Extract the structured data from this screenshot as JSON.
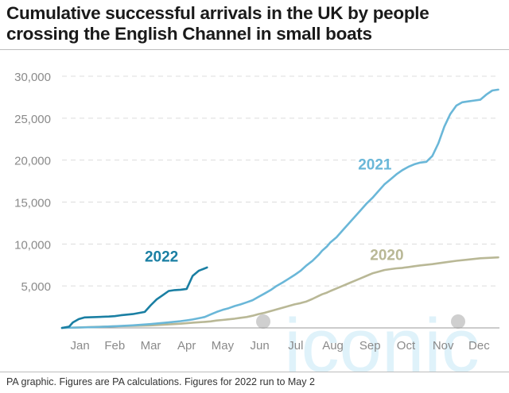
{
  "footer": "PA graphic. Figures are PA calculations. Figures for 2022 run to May 2",
  "watermark": {
    "text": "iconic",
    "color": "#6ec3ea"
  },
  "chart_data": {
    "type": "line",
    "title": "Cumulative successful arrivals in the UK by people crossing the English Channel in small boats",
    "xlabel": "",
    "ylabel": "",
    "x_unit": "day of year",
    "xlim": [
      1,
      366
    ],
    "ylim": [
      0,
      30000
    ],
    "yticks": [
      {
        "value": 0,
        "label": ""
      },
      {
        "value": 5000,
        "label": "5,000"
      },
      {
        "value": 10000,
        "label": "10,000"
      },
      {
        "value": 15000,
        "label": "15,000"
      },
      {
        "value": 20000,
        "label": "20,000"
      },
      {
        "value": 25000,
        "label": "25,000"
      },
      {
        "value": 30000,
        "label": "30,000"
      }
    ],
    "xticks": [
      {
        "value": 16,
        "label": "Jan"
      },
      {
        "value": 45,
        "label": "Feb"
      },
      {
        "value": 75,
        "label": "Mar"
      },
      {
        "value": 105,
        "label": "Apr"
      },
      {
        "value": 135,
        "label": "May"
      },
      {
        "value": 166,
        "label": "Jun"
      },
      {
        "value": 196,
        "label": "Jul"
      },
      {
        "value": 227,
        "label": "Aug"
      },
      {
        "value": 258,
        "label": "Sep"
      },
      {
        "value": 288,
        "label": "Oct"
      },
      {
        "value": 319,
        "label": "Nov"
      },
      {
        "value": 349,
        "label": "Dec"
      }
    ],
    "grid": {
      "horizontal": true,
      "style": "dashed",
      "color": "#dcdcdc"
    },
    "series": [
      {
        "name": "2020",
        "color": "#b9b896",
        "label_pos": [
          258,
          8100
        ],
        "x": [
          1,
          15,
          30,
          45,
          60,
          75,
          90,
          100,
          105,
          110,
          120,
          125,
          130,
          135,
          140,
          145,
          150,
          155,
          160,
          165,
          170,
          175,
          180,
          185,
          190,
          195,
          200,
          205,
          210,
          215,
          218,
          222,
          225,
          230,
          235,
          240,
          245,
          250,
          255,
          260,
          265,
          270,
          275,
          280,
          285,
          290,
          295,
          300,
          310,
          320,
          330,
          340,
          350,
          365
        ],
        "y": [
          0,
          60,
          120,
          190,
          250,
          300,
          420,
          500,
          560,
          620,
          720,
          780,
          880,
          950,
          1020,
          1100,
          1200,
          1300,
          1450,
          1650,
          1800,
          2000,
          2200,
          2400,
          2600,
          2800,
          2950,
          3150,
          3450,
          3800,
          4000,
          4200,
          4400,
          4700,
          5000,
          5300,
          5600,
          5900,
          6200,
          6500,
          6700,
          6900,
          7000,
          7100,
          7150,
          7250,
          7350,
          7450,
          7600,
          7800,
          8000,
          8150,
          8300,
          8400
        ]
      },
      {
        "name": "2021",
        "color": "#6ab7d8",
        "label_pos": [
          248,
          18900
        ],
        "x": [
          1,
          15,
          30,
          45,
          60,
          75,
          90,
          100,
          105,
          110,
          120,
          125,
          130,
          135,
          140,
          145,
          150,
          155,
          160,
          165,
          170,
          175,
          180,
          185,
          190,
          195,
          200,
          205,
          210,
          215,
          218,
          222,
          225,
          230,
          235,
          240,
          245,
          250,
          255,
          260,
          265,
          270,
          275,
          280,
          285,
          290,
          295,
          300,
          305,
          310,
          315,
          320,
          325,
          330,
          335,
          340,
          345,
          350,
          355,
          360,
          365
        ],
        "y": [
          0,
          50,
          100,
          200,
          300,
          450,
          650,
          800,
          900,
          1000,
          1300,
          1600,
          1900,
          2150,
          2350,
          2600,
          2800,
          3050,
          3300,
          3700,
          4100,
          4500,
          5000,
          5400,
          5850,
          6300,
          6800,
          7450,
          8000,
          8700,
          9200,
          9700,
          10200,
          10800,
          11600,
          12400,
          13200,
          14000,
          14800,
          15500,
          16300,
          17100,
          17700,
          18300,
          18800,
          19200,
          19500,
          19700,
          19800,
          20500,
          22000,
          24000,
          25500,
          26500,
          26900,
          27000,
          27100,
          27200,
          27800,
          28300,
          28400
        ]
      },
      {
        "name": "2022",
        "color": "#1a7fa3",
        "label_pos": [
          70,
          7900
        ],
        "x": [
          1,
          7,
          10,
          15,
          20,
          30,
          40,
          45,
          50,
          60,
          70,
          75,
          80,
          85,
          90,
          95,
          100,
          105,
          110,
          115,
          122
        ],
        "y": [
          0,
          150,
          650,
          1050,
          1250,
          1300,
          1350,
          1400,
          1500,
          1650,
          1900,
          2700,
          3400,
          3900,
          4400,
          4500,
          4550,
          4650,
          6200,
          6800,
          7200
        ]
      }
    ]
  }
}
